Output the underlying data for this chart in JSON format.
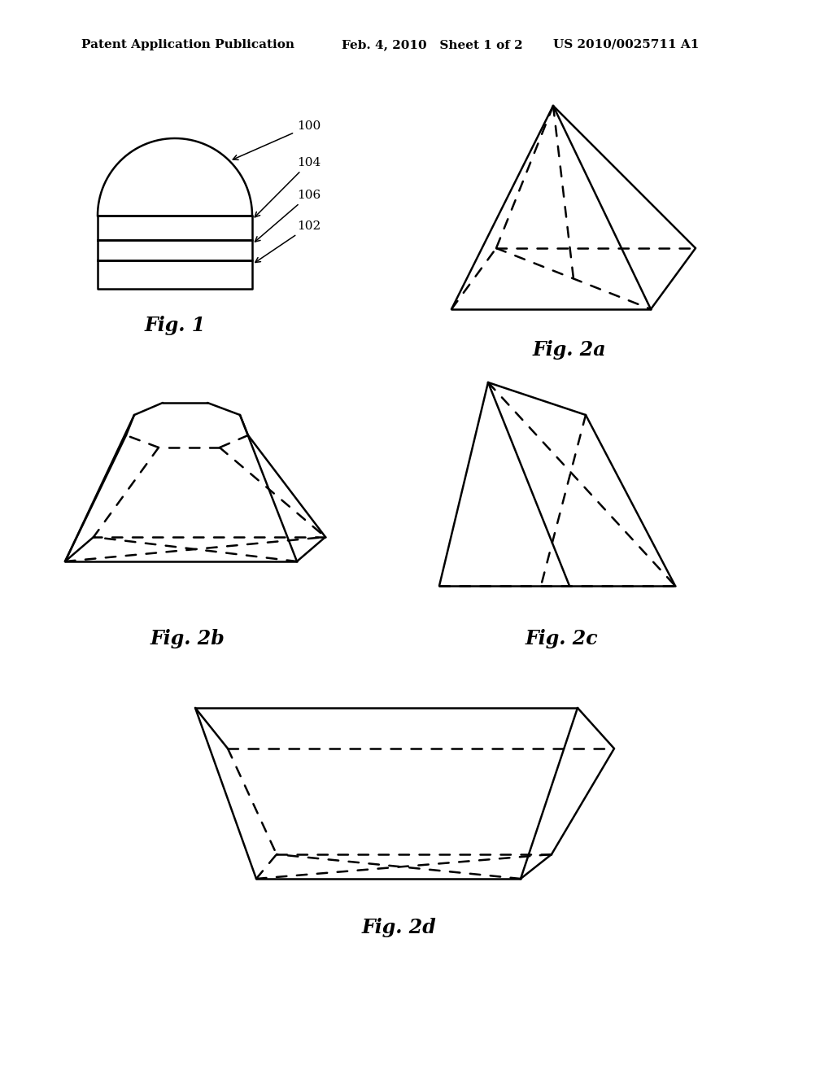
{
  "bg_color": "#ffffff",
  "line_color": "#000000",
  "header_text_left": "Patent Application Publication",
  "header_text_mid": "Feb. 4, 2010   Sheet 1 of 2",
  "header_text_right": "US 2010/0025711 A1",
  "header_fontsize": 11,
  "fig1_caption": "Fig. 1",
  "fig2a_caption": "Fig. 2a",
  "fig2b_caption": "Fig. 2b",
  "fig2c_caption": "Fig. 2c",
  "fig2d_caption": "Fig. 2d",
  "caption_fontsize": 17,
  "label_fontsize": 11
}
